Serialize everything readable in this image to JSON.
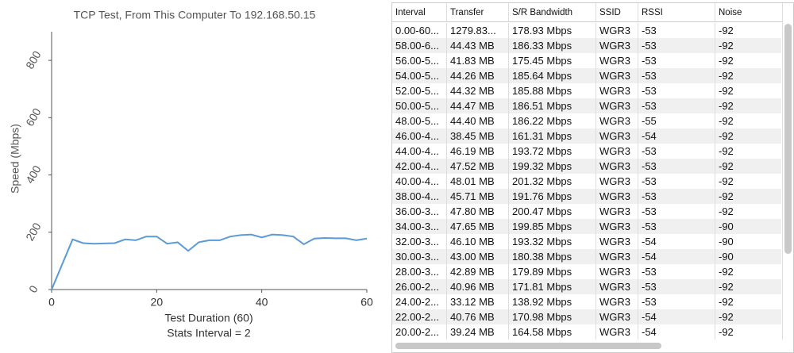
{
  "chart_data": {
    "type": "line",
    "title": "TCP Test,  From This Computer To 192.168.50.15",
    "x_label": "Test Duration (60)",
    "subtitle": "Stats Interval = 2",
    "y_label": "Speed (Mbps)",
    "x": [
      0,
      4,
      6,
      8,
      10,
      12,
      14,
      16,
      18,
      20,
      22,
      24,
      26,
      28,
      30,
      32,
      34,
      36,
      38,
      40,
      42,
      44,
      46,
      48,
      50,
      52,
      54,
      56,
      58,
      60
    ],
    "series": [
      {
        "color": "#5b9bd5",
        "values": [
          0,
          175,
          162,
          160,
          161,
          162,
          175,
          172,
          185,
          185,
          160,
          165,
          135,
          165,
          172,
          172,
          185,
          190,
          192,
          182,
          192,
          190,
          185,
          158,
          178,
          180,
          179,
          179,
          172,
          178
        ]
      }
    ],
    "xlim": [
      0,
      60
    ],
    "xticks": [
      0,
      20,
      40,
      60
    ],
    "ylim": [
      0,
      900
    ],
    "yticks": [
      0,
      200,
      400,
      600,
      800
    ]
  },
  "table": {
    "columns": [
      "Interval",
      "Transfer",
      "S/R Bandwidth",
      "SSID",
      "RSSI",
      "Noise"
    ],
    "rows": [
      [
        "0.00-60...",
        "1279.83...",
        "178.93 Mbps",
        "WGR3",
        "-53",
        "-92"
      ],
      [
        "58.00-6...",
        "44.43 MB",
        "186.33 Mbps",
        "WGR3",
        "-53",
        "-92"
      ],
      [
        "56.00-5...",
        "41.83 MB",
        "175.45 Mbps",
        "WGR3",
        "-53",
        "-92"
      ],
      [
        "54.00-5...",
        "44.26 MB",
        "185.64 Mbps",
        "WGR3",
        "-53",
        "-92"
      ],
      [
        "52.00-5...",
        "44.32 MB",
        "185.88 Mbps",
        "WGR3",
        "-53",
        "-92"
      ],
      [
        "50.00-5...",
        "44.47 MB",
        "186.51 Mbps",
        "WGR3",
        "-53",
        "-92"
      ],
      [
        "48.00-5...",
        "44.40 MB",
        "186.22 Mbps",
        "WGR3",
        "-55",
        "-92"
      ],
      [
        "46.00-4...",
        "38.45 MB",
        "161.31 Mbps",
        "WGR3",
        "-54",
        "-92"
      ],
      [
        "44.00-4...",
        "46.19 MB",
        "193.72 Mbps",
        "WGR3",
        "-53",
        "-92"
      ],
      [
        "42.00-4...",
        "47.52 MB",
        "199.32 Mbps",
        "WGR3",
        "-53",
        "-92"
      ],
      [
        "40.00-4...",
        "48.01 MB",
        "201.32 Mbps",
        "WGR3",
        "-53",
        "-92"
      ],
      [
        "38.00-4...",
        "45.71 MB",
        "191.76 Mbps",
        "WGR3",
        "-53",
        "-92"
      ],
      [
        "36.00-3...",
        "47.80 MB",
        "200.47 Mbps",
        "WGR3",
        "-53",
        "-92"
      ],
      [
        "34.00-3...",
        "47.65 MB",
        "199.85 Mbps",
        "WGR3",
        "-53",
        "-90"
      ],
      [
        "32.00-3...",
        "46.10 MB",
        "193.32 Mbps",
        "WGR3",
        "-54",
        "-90"
      ],
      [
        "30.00-3...",
        "43.00 MB",
        "180.38 Mbps",
        "WGR3",
        "-54",
        "-90"
      ],
      [
        "28.00-3...",
        "42.89 MB",
        "179.89 Mbps",
        "WGR3",
        "-53",
        "-92"
      ],
      [
        "26.00-2...",
        "40.96 MB",
        "171.81 Mbps",
        "WGR3",
        "-53",
        "-92"
      ],
      [
        "24.00-2...",
        "33.12 MB",
        "138.92 Mbps",
        "WGR3",
        "-53",
        "-92"
      ],
      [
        "22.00-2...",
        "40.76 MB",
        "170.98 Mbps",
        "WGR3",
        "-54",
        "-92"
      ],
      [
        "20.00-2...",
        "39.24 MB",
        "164.58 Mbps",
        "WGR3",
        "-54",
        "-92"
      ]
    ]
  }
}
